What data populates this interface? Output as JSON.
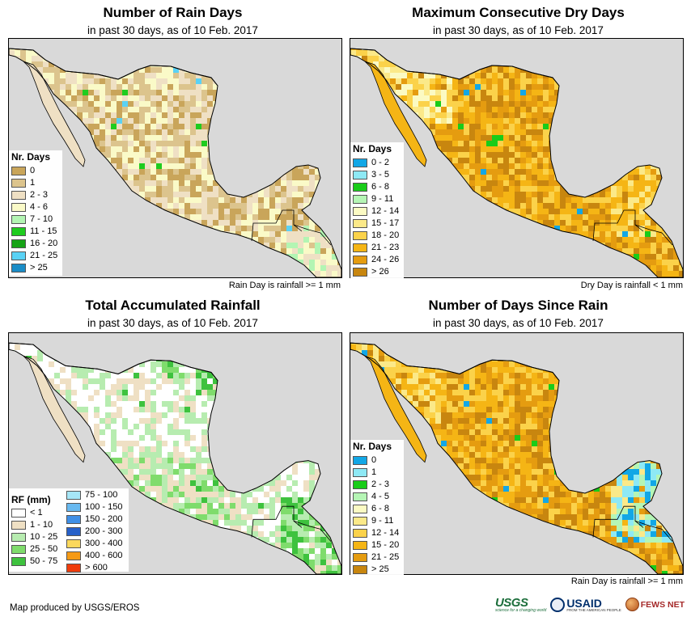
{
  "colors": {
    "ocean": "#d9d9d9",
    "border": "#000000"
  },
  "panels": {
    "rain_days": {
      "title": "Number of Rain Days",
      "subtitle": "in past 30 days, as of 10 Feb. 2017",
      "note": "Rain Day is rainfall >= 1 mm",
      "legend": {
        "title": "Nr. Days",
        "items": [
          {
            "label": "0",
            "color": "#c9a55a"
          },
          {
            "label": "1",
            "color": "#dcc48d"
          },
          {
            "label": "2 - 3",
            "color": "#efe0c4"
          },
          {
            "label": "4 - 6",
            "color": "#fafac8"
          },
          {
            "label": "7 - 10",
            "color": "#b3f5b3"
          },
          {
            "label": "11 - 15",
            "color": "#1fcc1f"
          },
          {
            "label": "16 - 20",
            "color": "#16a316"
          },
          {
            "label": "21 - 25",
            "color": "#5ad2f5"
          },
          {
            "label": "> 25",
            "color": "#1a8cc6"
          }
        ]
      }
    },
    "dry_days": {
      "title": "Maximum Consecutive Dry Days",
      "subtitle": "in past 30 days, as of 10 Feb. 2017",
      "note": "Dry Day is rainfall < 1 mm",
      "legend": {
        "title": "Nr. Days",
        "items": [
          {
            "label": "0 - 2",
            "color": "#12a7e6"
          },
          {
            "label": "3 - 5",
            "color": "#8ee9f5"
          },
          {
            "label": "6 - 8",
            "color": "#19cc19"
          },
          {
            "label": "9 - 11",
            "color": "#b5f5b5"
          },
          {
            "label": "12 - 14",
            "color": "#fbfac3"
          },
          {
            "label": "15 - 17",
            "color": "#fbe989"
          },
          {
            "label": "18 - 20",
            "color": "#fbd24a"
          },
          {
            "label": "21 - 23",
            "color": "#f5b515"
          },
          {
            "label": "24 - 26",
            "color": "#e59c10"
          },
          {
            "label": "> 26",
            "color": "#c8860f"
          }
        ]
      }
    },
    "rainfall": {
      "title": "Total Accumulated Rainfall",
      "subtitle": "in past 30 days, as of 10 Feb. 2017",
      "legend": {
        "title": "RF (mm)",
        "col1": [
          {
            "label": "< 1",
            "color": "#ffffff"
          },
          {
            "label": "1 - 10",
            "color": "#efe0c4"
          },
          {
            "label": "10 - 25",
            "color": "#b7ecb0"
          },
          {
            "label": "25 - 50",
            "color": "#7fdc6c"
          },
          {
            "label": "50 - 75",
            "color": "#3ec23e"
          }
        ],
        "col2": [
          {
            "label": "75 - 100",
            "color": "#a6e6f7"
          },
          {
            "label": "100 - 150",
            "color": "#68b9f0"
          },
          {
            "label": "150 - 200",
            "color": "#3f8fe6"
          },
          {
            "label": "200 - 300",
            "color": "#2660c9"
          },
          {
            "label": "300 - 400",
            "color": "#fbd85c"
          },
          {
            "label": "400 - 600",
            "color": "#f59a15"
          },
          {
            "label": "> 600",
            "color": "#f03c0c"
          }
        ]
      }
    },
    "since_rain": {
      "title": "Number of Days Since Rain",
      "subtitle": "in past 30 days, as of 10 Feb. 2017",
      "note": "Rain Day is rainfall >= 1 mm",
      "legend": {
        "title": "Nr. Days",
        "items": [
          {
            "label": "0",
            "color": "#12a7e6"
          },
          {
            "label": "1",
            "color": "#8ee9f5"
          },
          {
            "label": "2 - 3",
            "color": "#19cc19"
          },
          {
            "label": "4 - 5",
            "color": "#b5f5b5"
          },
          {
            "label": "6 - 8",
            "color": "#fbfac3"
          },
          {
            "label": "9 - 11",
            "color": "#fbe989"
          },
          {
            "label": "12 - 14",
            "color": "#fbd24a"
          },
          {
            "label": "15 - 20",
            "color": "#f5b515"
          },
          {
            "label": "21 - 25",
            "color": "#e59c10"
          },
          {
            "label": "> 25",
            "color": "#c8860f"
          }
        ]
      }
    }
  },
  "footer": {
    "credit": "Map produced by USGS/EROS",
    "logos": {
      "usgs": "USGS",
      "usgs_tagline": "science for a changing world",
      "usaid": "USAID",
      "usaid_tagline": "FROM THE AMERICAN PEOPLE",
      "fews": "FEWS NET"
    }
  }
}
